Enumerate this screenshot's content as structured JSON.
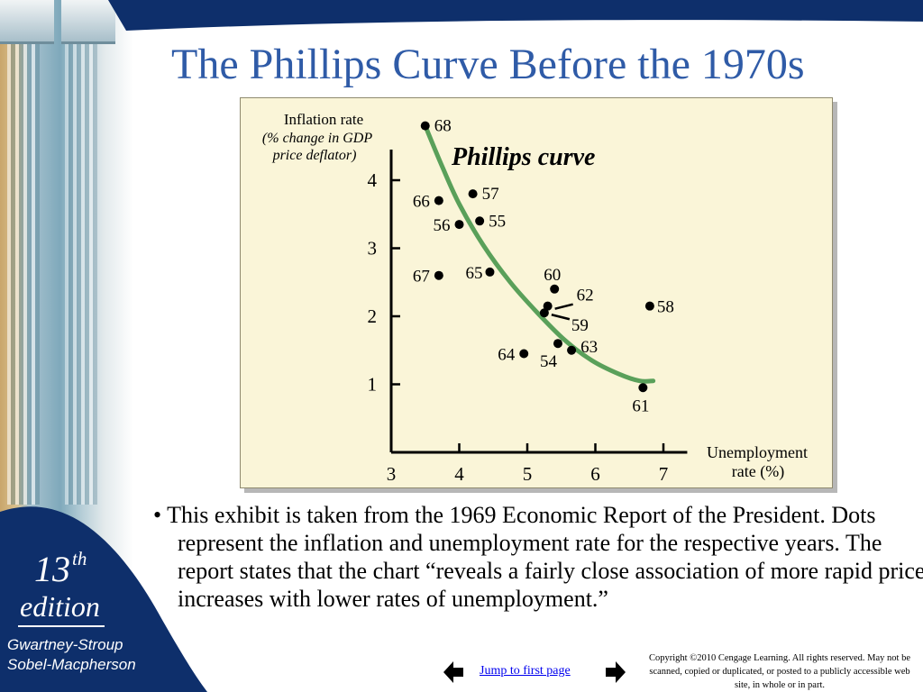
{
  "slide": {
    "title": "The Phillips Curve Before the 1970s",
    "bullet": "• This exhibit is taken from the 1969 Economic Report of the President. Dots represent the inflation and unemployment rate for the respective years.  The report states that the chart “reveals a fairly close association of more rapid price increases with lower rates of unemployment.”"
  },
  "branding": {
    "edition_number": "13",
    "edition_suffix": "th",
    "edition_word": "edition",
    "authors_line1": "Gwartney-Stroup",
    "authors_line2": "Sobel-Macpherson"
  },
  "navigation": {
    "jump_label": "Jump to first page",
    "prev_icon": "left-arrow-icon",
    "next_icon": "right-arrow-icon"
  },
  "copyright": "Copyright ©2010 Cengage Learning. All rights reserved. May not be scanned, copied or duplicated, or posted to a publicly accessible web site, in whole or in part.",
  "colors": {
    "title": "#2f5ba7",
    "navy": "#0e2f6b",
    "panel": "#faf5d8",
    "curve": "#5aa05a"
  },
  "chart_data": {
    "type": "scatter",
    "ylabel_line1": "Inflation rate",
    "ylabel_line2": "(% change in GDP",
    "ylabel_line3": "price deflator)",
    "xlabel_line1": "Unemployment",
    "xlabel_line2": "rate (%)",
    "curve_label": "Phillips curve",
    "xlim": [
      3,
      7.35
    ],
    "ylim": [
      0,
      4.8
    ],
    "x_ticks": [
      3,
      4,
      5,
      6,
      7
    ],
    "y_ticks": [
      1,
      2,
      3,
      4
    ],
    "grid": false,
    "points": [
      {
        "year": "68",
        "x": 3.5,
        "y": 4.8
      },
      {
        "year": "57",
        "x": 4.2,
        "y": 3.8
      },
      {
        "year": "66",
        "x": 3.7,
        "y": 3.7
      },
      {
        "year": "55",
        "x": 4.3,
        "y": 3.4
      },
      {
        "year": "56",
        "x": 4.0,
        "y": 3.35
      },
      {
        "year": "65",
        "x": 4.45,
        "y": 2.65
      },
      {
        "year": "67",
        "x": 3.7,
        "y": 2.6
      },
      {
        "year": "60",
        "x": 5.4,
        "y": 2.4
      },
      {
        "year": "62",
        "x": 5.3,
        "y": 2.15
      },
      {
        "year": "58",
        "x": 6.8,
        "y": 2.15
      },
      {
        "year": "59",
        "x": 5.25,
        "y": 2.05
      },
      {
        "year": "63",
        "x": 5.65,
        "y": 1.5
      },
      {
        "year": "54",
        "x": 5.45,
        "y": 1.6
      },
      {
        "year": "64",
        "x": 4.95,
        "y": 1.45
      },
      {
        "year": "61",
        "x": 6.7,
        "y": 0.95
      }
    ],
    "curve": [
      [
        3.5,
        4.8
      ],
      [
        3.75,
        4.2
      ],
      [
        4.0,
        3.65
      ],
      [
        4.35,
        3.05
      ],
      [
        4.75,
        2.5
      ],
      [
        5.15,
        2.05
      ],
      [
        5.55,
        1.65
      ],
      [
        5.95,
        1.35
      ],
      [
        6.35,
        1.15
      ],
      [
        6.65,
        1.05
      ],
      [
        6.85,
        1.05
      ]
    ]
  }
}
